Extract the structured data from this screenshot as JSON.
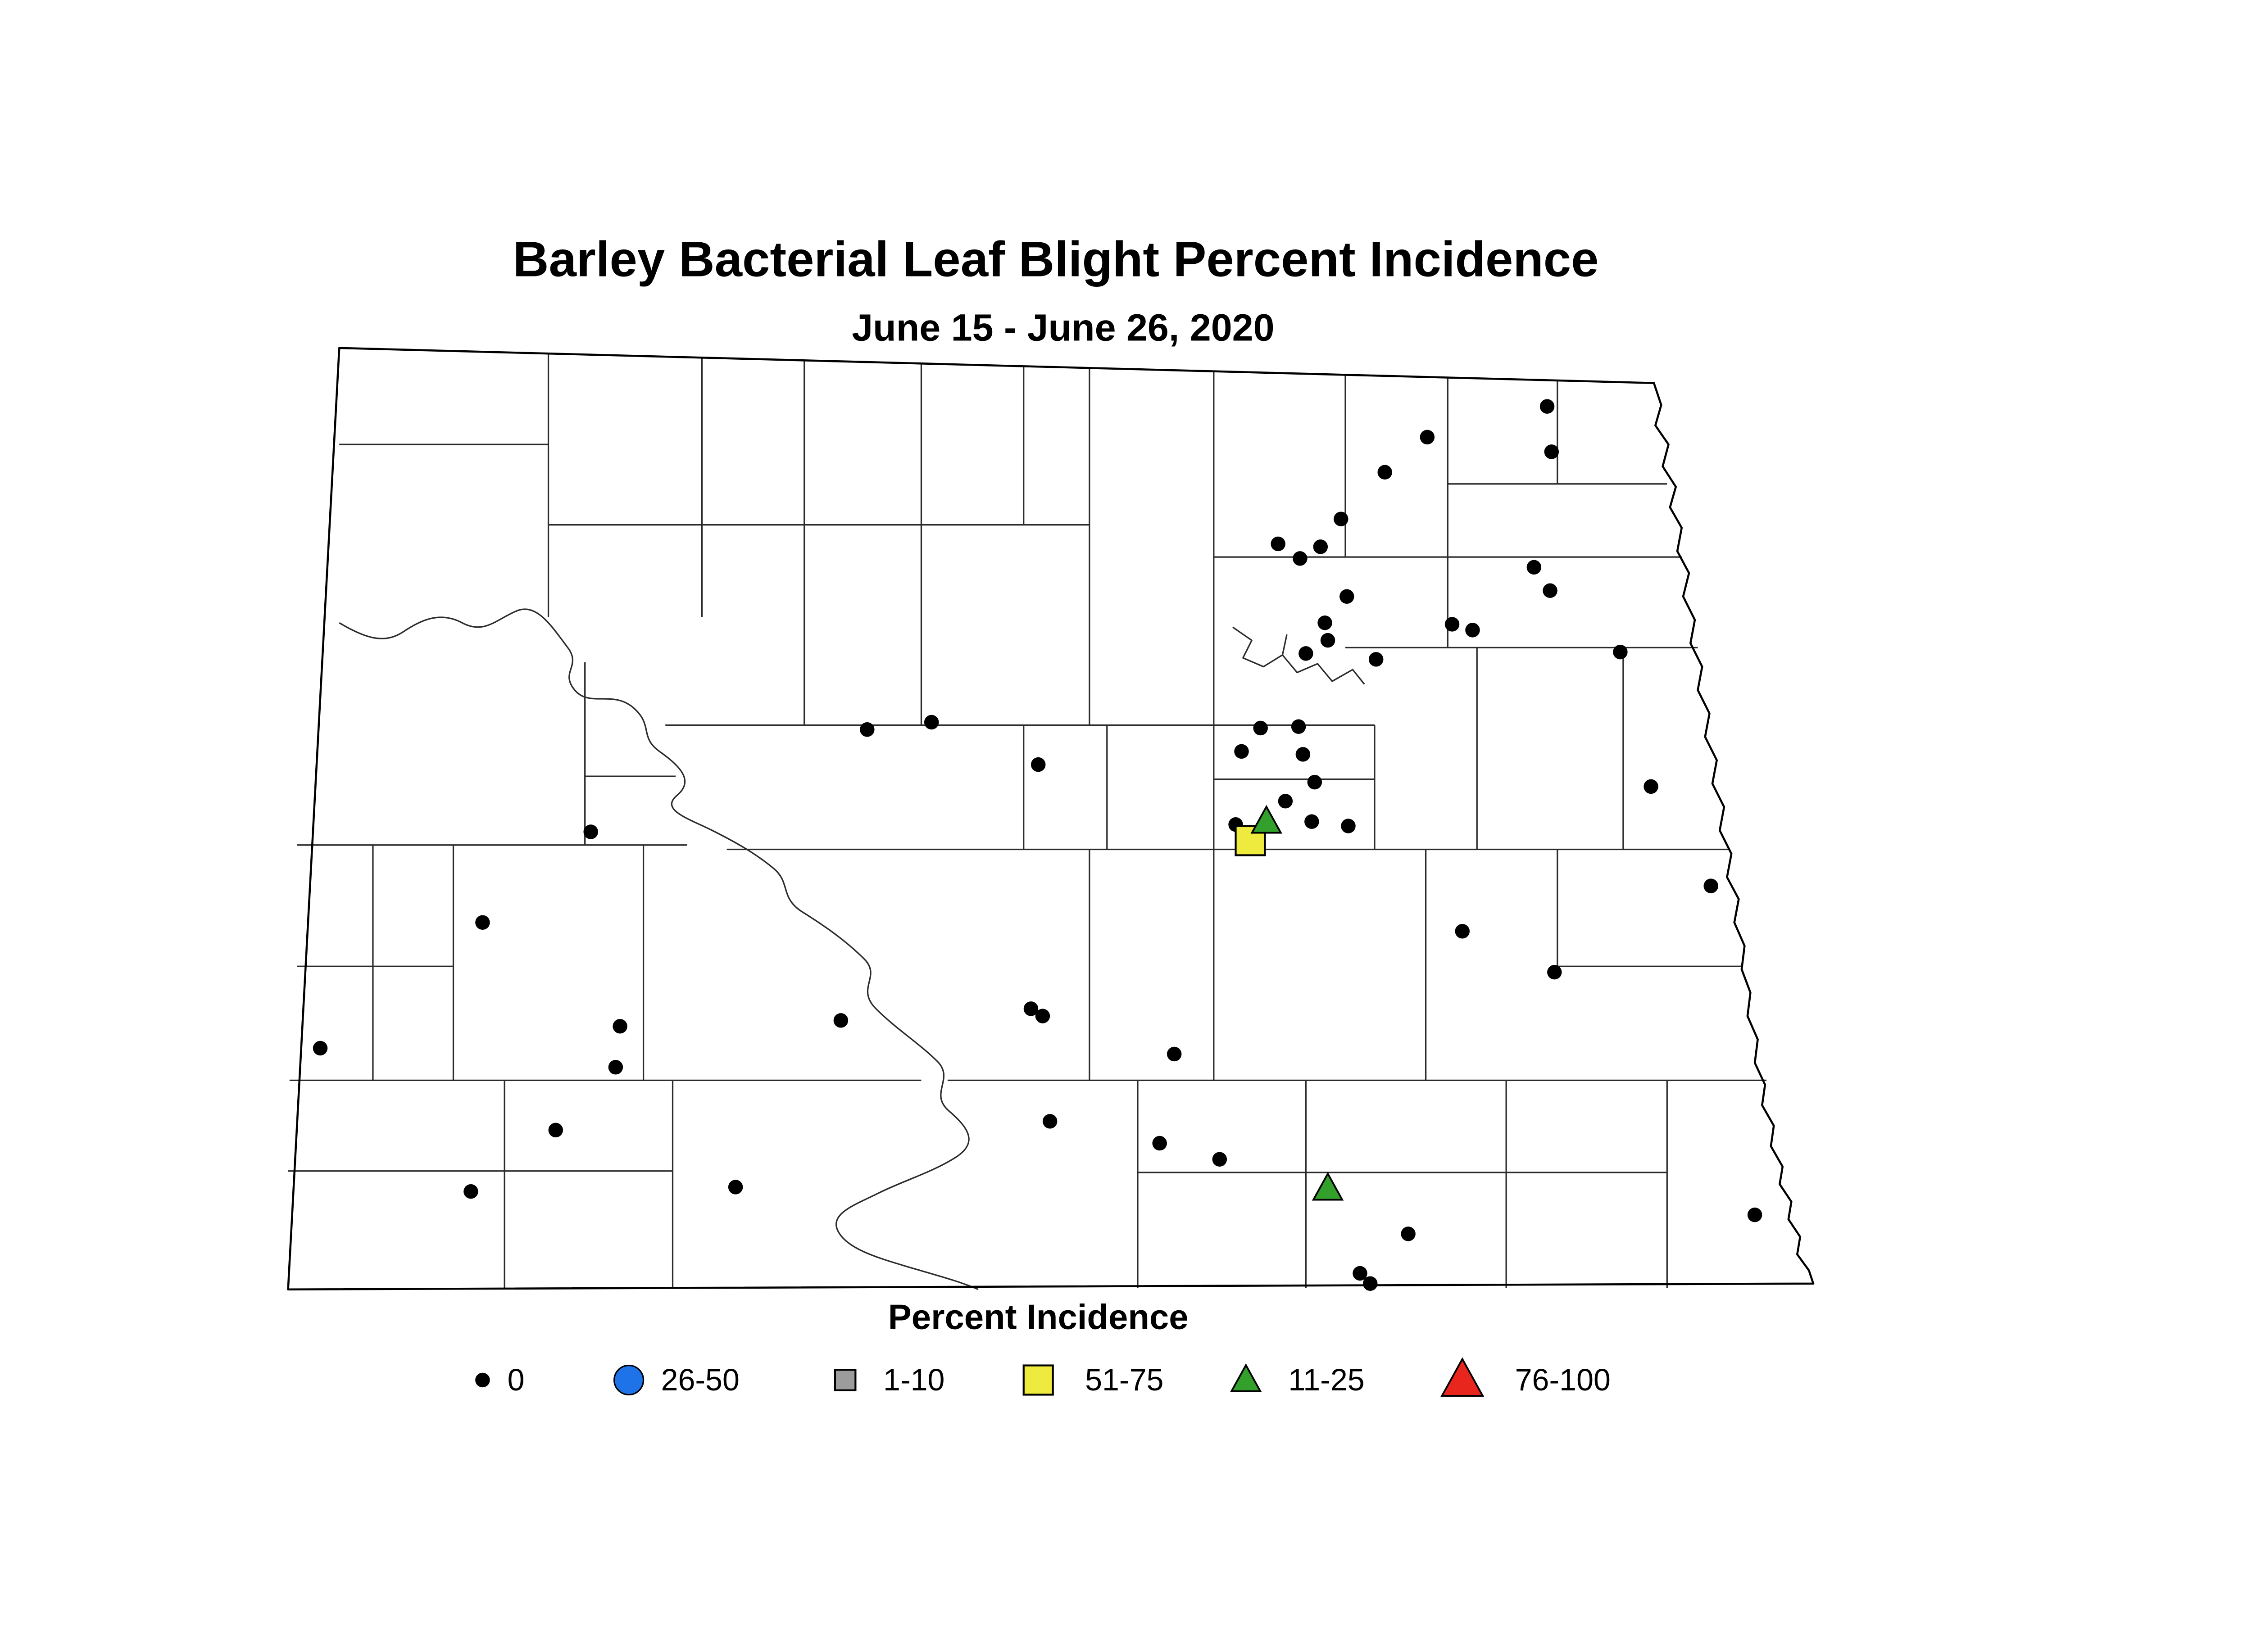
{
  "chart_data": {
    "type": "scatter",
    "region": "North Dakota county map",
    "title": "Barley Bacterial Leaf Blight Percent Incidence",
    "subtitle": "June 15 - June 26, 2020",
    "legend_title": "Percent Incidence",
    "legend_order": [
      "0",
      "26-50",
      "1-10",
      "51-75",
      "11-25",
      "76-100"
    ],
    "categories": {
      "0": {
        "marker": "dot",
        "color": "#000000",
        "size": 5
      },
      "26-50": {
        "marker": "circle",
        "color": "#1e73e8",
        "size": 10
      },
      "1-10": {
        "marker": "square",
        "color": "#9c9c9c",
        "size": 14
      },
      "51-75": {
        "marker": "square",
        "color": "#eeea3e",
        "size": 20
      },
      "11-25": {
        "marker": "triangle",
        "color": "#33a02c",
        "size": 17
      },
      "76-100": {
        "marker": "triangle",
        "color": "#e8261d",
        "size": 24
      }
    },
    "points": {
      "0": [
        [
          976,
          158
        ],
        [
          1058,
          137
        ],
        [
          1061,
          168
        ],
        [
          947,
          182
        ],
        [
          917,
          214
        ],
        [
          874,
          231
        ],
        [
          889,
          241
        ],
        [
          903,
          233
        ],
        [
          1049,
          247
        ],
        [
          1060,
          263
        ],
        [
          921,
          267
        ],
        [
          906,
          285
        ],
        [
          908,
          297
        ],
        [
          893,
          306
        ],
        [
          941,
          310
        ],
        [
          993,
          286
        ],
        [
          1007,
          290
        ],
        [
          1108,
          305
        ],
        [
          593,
          358
        ],
        [
          637,
          353
        ],
        [
          862,
          357
        ],
        [
          888,
          356
        ],
        [
          849,
          373
        ],
        [
          891,
          375
        ],
        [
          710,
          382
        ],
        [
          899,
          394
        ],
        [
          1129,
          397
        ],
        [
          879,
          407
        ],
        [
          404,
          428
        ],
        [
          845,
          423
        ],
        [
          897,
          421
        ],
        [
          922,
          424
        ],
        [
          1170,
          465
        ],
        [
          330,
          490
        ],
        [
          1000,
          496
        ],
        [
          1063,
          524
        ],
        [
          575,
          557
        ],
        [
          705,
          549
        ],
        [
          713,
          554
        ],
        [
          803,
          580
        ],
        [
          219,
          576
        ],
        [
          424,
          561
        ],
        [
          421,
          589
        ],
        [
          380,
          632
        ],
        [
          718,
          626
        ],
        [
          793,
          641
        ],
        [
          834,
          652
        ],
        [
          322,
          674
        ],
        [
          503,
          671
        ],
        [
          963,
          703
        ],
        [
          930,
          730
        ],
        [
          937,
          737
        ],
        [
          1200,
          690
        ]
      ],
      "26-50": [],
      "1-10": [],
      "51-75": [
        [
          855,
          434
        ]
      ],
      "11-25": [
        [
          866,
          421
        ],
        [
          908,
          672
        ]
      ],
      "76-100": []
    }
  }
}
